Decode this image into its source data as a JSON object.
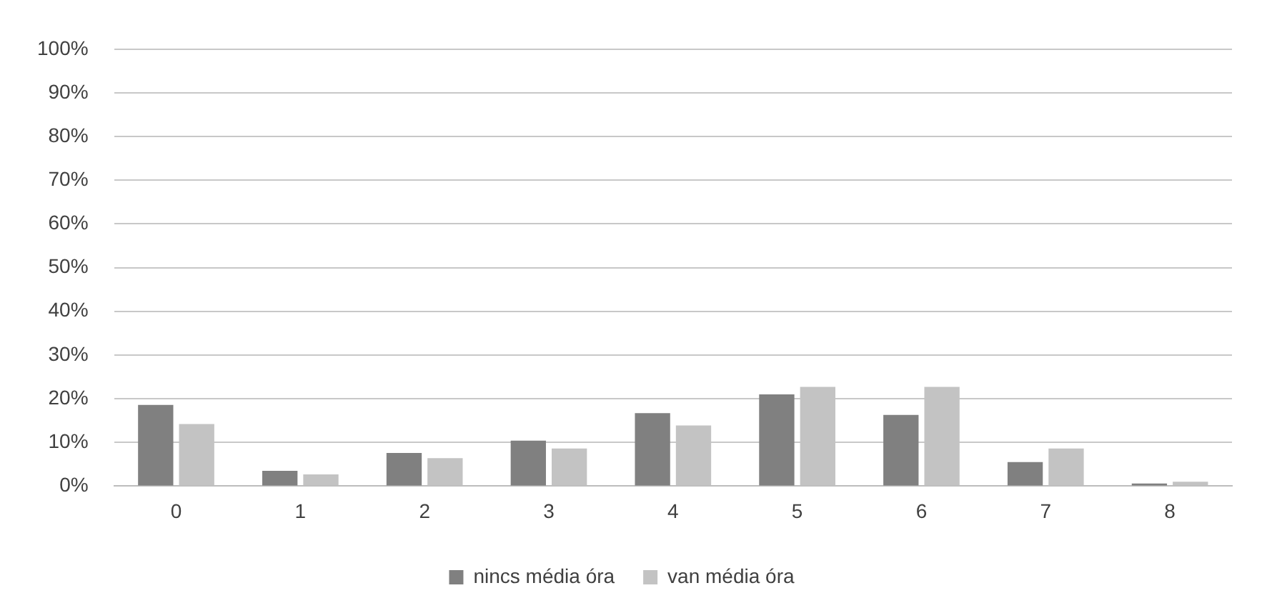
{
  "chart_data": {
    "type": "bar",
    "categories": [
      "0",
      "1",
      "2",
      "3",
      "4",
      "5",
      "6",
      "7",
      "8"
    ],
    "series": [
      {
        "name": "nincs média óra",
        "color": "#808080",
        "values": [
          18.6,
          3.5,
          7.6,
          10.4,
          16.7,
          21.0,
          16.3,
          5.5,
          0.6
        ]
      },
      {
        "name": "van média óra",
        "color": "#c3c3c3",
        "values": [
          14.2,
          2.7,
          6.4,
          8.6,
          13.9,
          22.7,
          22.7,
          8.6,
          1.0
        ]
      }
    ],
    "ylim": [
      0,
      100
    ],
    "yticks": [
      {
        "value": 0,
        "label": "0%"
      },
      {
        "value": 10,
        "label": "10%"
      },
      {
        "value": 20,
        "label": "20%"
      },
      {
        "value": 30,
        "label": "30%"
      },
      {
        "value": 40,
        "label": "40%"
      },
      {
        "value": 50,
        "label": "50%"
      },
      {
        "value": 60,
        "label": "60%"
      },
      {
        "value": 70,
        "label": "70%"
      },
      {
        "value": 80,
        "label": "80%"
      },
      {
        "value": 90,
        "label": "90%"
      },
      {
        "value": 100,
        "label": "100%"
      }
    ],
    "grid": "y",
    "legend": "bottom"
  }
}
